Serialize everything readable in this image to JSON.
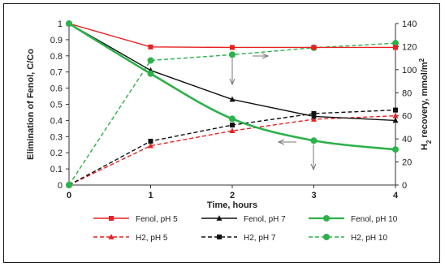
{
  "chart_data": {
    "type": "line",
    "x": [
      0,
      1,
      2,
      3,
      4
    ],
    "xlabel": "Time, hours",
    "ylabel_left": "Elimination of Fenol, C/Co",
    "ylabel_right_parts": [
      "H",
      "2",
      " recovery, mmol/m",
      "2"
    ],
    "ylim_left": [
      0,
      1
    ],
    "ylim_right": [
      0,
      140
    ],
    "xlim": [
      0,
      4
    ],
    "x_ticks": [
      0,
      1,
      2,
      3,
      4
    ],
    "y_left_ticks": [
      0,
      0.1,
      0.2,
      0.3,
      0.4,
      0.5,
      0.6,
      0.7,
      0.8,
      0.9,
      1
    ],
    "y_right_ticks": [
      0,
      20,
      40,
      60,
      80,
      100,
      120,
      140
    ],
    "grid": false,
    "legend_position": "bottom",
    "series": [
      {
        "name": "Fenol, pH 5",
        "axis": "left",
        "color": "#e82020",
        "marker": "square",
        "dash": "solid",
        "smooth": false,
        "values": [
          1.0,
          0.855,
          0.852,
          0.852,
          0.852
        ]
      },
      {
        "name": "Fenol, pH 7",
        "axis": "left",
        "color": "#111111",
        "marker": "triangle",
        "dash": "solid",
        "smooth": false,
        "values": [
          1.0,
          0.71,
          0.53,
          0.425,
          0.4
        ]
      },
      {
        "name": "Fenol, pH 10",
        "axis": "left",
        "color": "#2db14b",
        "marker": "circle",
        "dash": "solid",
        "smooth": true,
        "values": [
          1.0,
          0.69,
          0.41,
          0.275,
          0.22
        ]
      },
      {
        "name": "H2, pH 5",
        "axis": "right",
        "color": "#e82020",
        "marker": "triangle",
        "dash": "dashed",
        "smooth": false,
        "values": [
          0,
          34,
          47,
          57,
          60
        ]
      },
      {
        "name": "H2, pH 7",
        "axis": "right",
        "color": "#111111",
        "marker": "square",
        "dash": "dashed",
        "smooth": false,
        "values": [
          0,
          38,
          52,
          62,
          65
        ]
      },
      {
        "name": "H2, pH 10",
        "axis": "right",
        "color": "#2db14b",
        "marker": "circle",
        "dash": "dashed",
        "smooth": false,
        "values": [
          0,
          108,
          113,
          119,
          123
        ]
      }
    ],
    "legend_order": [
      "Fenol, pH 5",
      "Fenol, pH 7",
      "Fenol, pH 10",
      "H2, pH 5",
      "H2, pH 7",
      "H2, pH 10"
    ]
  },
  "colors": {
    "pH5": "#e82020",
    "pH7": "#111111",
    "pH10": "#2db14b",
    "annotation": "#777777"
  }
}
